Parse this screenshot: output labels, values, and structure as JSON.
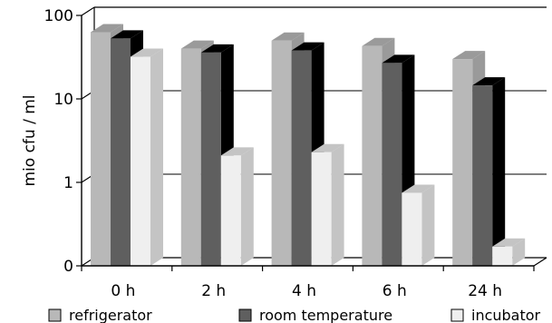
{
  "chart_data": {
    "type": "bar",
    "ylabel": "mio cfu / ml",
    "yscale": "log",
    "ylim": [
      0.1,
      100
    ],
    "yticks": [
      {
        "value": 0.1,
        "label": "0"
      },
      {
        "value": 1,
        "label": "1"
      },
      {
        "value": 10,
        "label": "10"
      },
      {
        "value": 100,
        "label": "100"
      }
    ],
    "categories": [
      "0 h",
      "2 h",
      "4 h",
      "6 h",
      "24 h"
    ],
    "series": [
      {
        "name": "refrigerator",
        "values": [
          63,
          40,
          50,
          43,
          30
        ],
        "color": "#b8b8b8",
        "side_color": "#9a9a9a",
        "legend_fill": "#b8b8b8"
      },
      {
        "name": "room temperature",
        "values": [
          53,
          36,
          38,
          27,
          14.5
        ],
        "color": "#5f5f5f",
        "side_color": "#000000",
        "legend_fill": "#5f5f5f"
      },
      {
        "name": "incubator",
        "values": [
          32,
          2.1,
          2.3,
          0.75,
          0.17
        ],
        "color": "#efefef",
        "side_color": "#c4c4c4",
        "legend_fill": "#efefef"
      }
    ],
    "grid": true,
    "legend_position": "bottom"
  }
}
